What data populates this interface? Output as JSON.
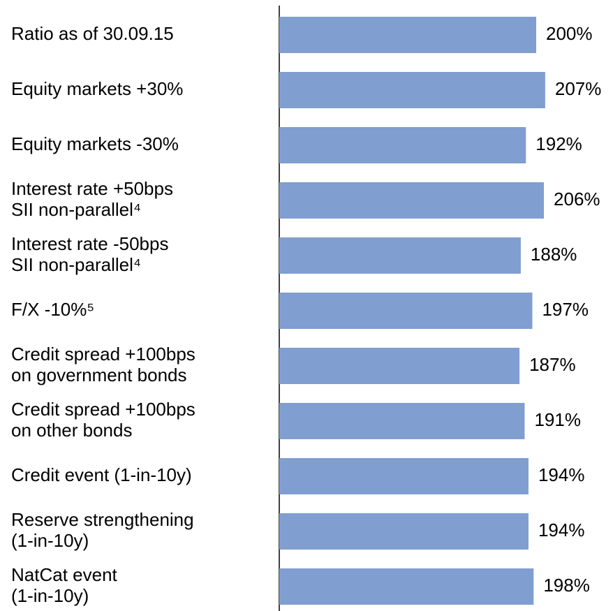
{
  "chart_data": {
    "type": "bar",
    "orientation": "horizontal",
    "categories": [
      "Ratio as of 30.09.15",
      "Equity markets +30%",
      "Equity markets -30%",
      "Interest rate +50bps\nSII non-parallel⁴",
      "Interest rate -50bps\nSII non-parallel⁴",
      "F/X -10%⁵",
      "Credit spread +100bps\non government bonds",
      "Credit spread +100bps\non other bonds",
      "Credit event (1-in-10y)",
      "Reserve strengthening\n(1-in-10y)",
      "NatCat event\n(1-in-10y)"
    ],
    "values": [
      200,
      207,
      192,
      206,
      188,
      197,
      187,
      191,
      194,
      194,
      198
    ],
    "value_labels": [
      "200%",
      "207%",
      "192%",
      "206%",
      "188%",
      "197%",
      "187%",
      "191%",
      "194%",
      "194%",
      "198%"
    ],
    "color": "#809ecf",
    "xlim": [
      0,
      240
    ]
  }
}
